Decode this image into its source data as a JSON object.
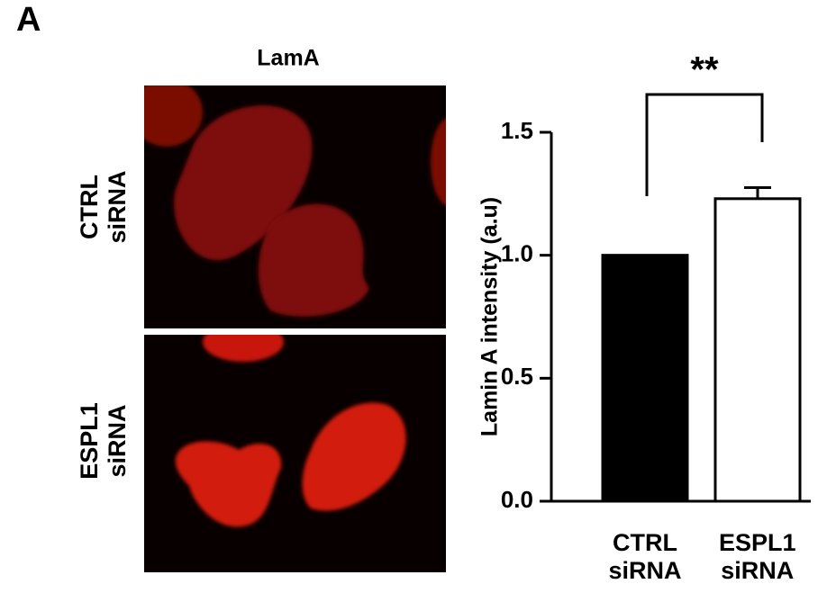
{
  "panel": "A",
  "images": {
    "title": "LamA",
    "rows": [
      "CTRL siRNA",
      "ESPL1 siRNA"
    ]
  },
  "chart_data": {
    "type": "bar",
    "y_label": "Lamin A intensity (a.u)",
    "categories": [
      "CTRL siRNA",
      "ESPL1 siRNA"
    ],
    "values": [
      1.0,
      1.23
    ],
    "errors": [
      null,
      0.045
    ],
    "colors": [
      "#000000",
      "#ffffff"
    ],
    "annotation": "**",
    "ylim": [
      0,
      1.5
    ],
    "yticks": [
      {
        "value": 0,
        "label": "0.0"
      },
      0.5,
      {
        "value": 1,
        "label": "1.0"
      },
      1.5
    ]
  }
}
